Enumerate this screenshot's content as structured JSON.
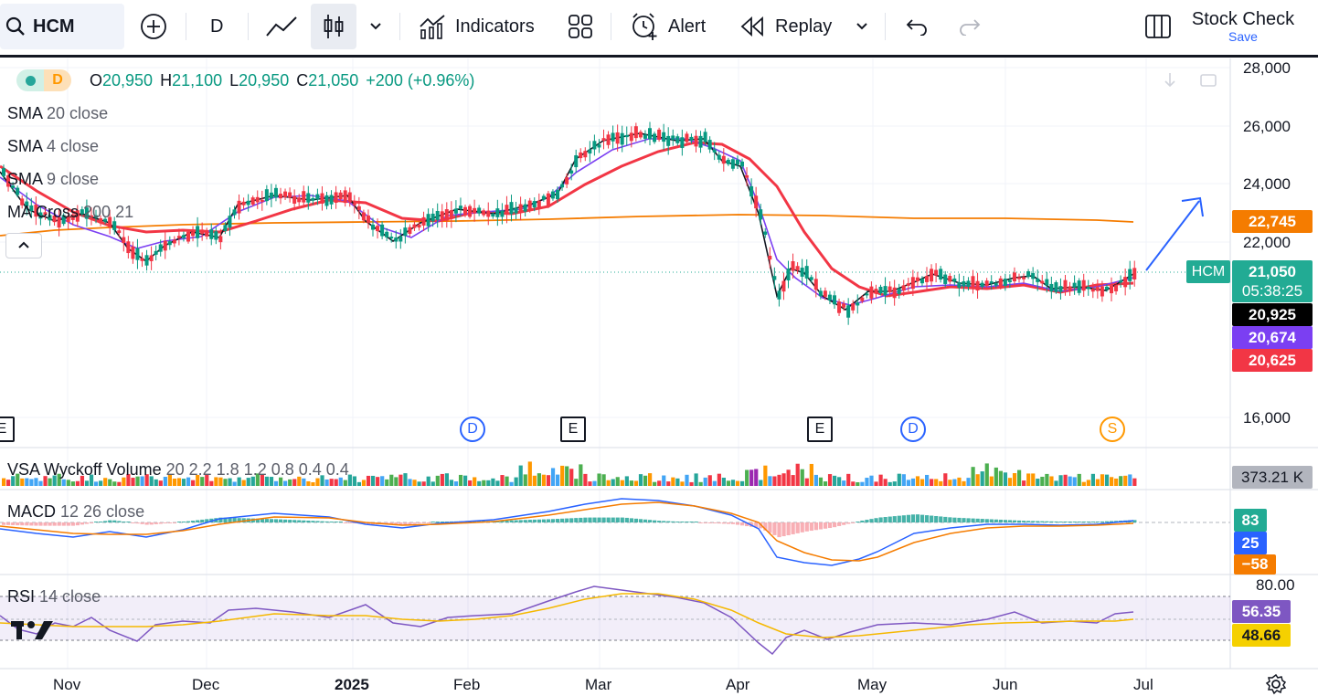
{
  "toolbar": {
    "symbol": "HCM",
    "interval": "D",
    "indicators_label": "Indicators",
    "alert_label": "Alert",
    "replay_label": "Replay",
    "stock_check_label": "Stock Check",
    "save_label": "Save"
  },
  "legend": {
    "interval_badge": "D",
    "open_key": "O",
    "open": "20,950",
    "high_key": "H",
    "high": "21,100",
    "low_key": "L",
    "low": "20,950",
    "close_key": "C",
    "close": "21,050",
    "change": "+200 (+0.96%)",
    "indicators": [
      {
        "name": "SMA",
        "params": "20 close"
      },
      {
        "name": "SMA",
        "params": "4 close"
      },
      {
        "name": "SMA",
        "params": "9 close"
      },
      {
        "name": "MA Cross",
        "params": "200 21"
      }
    ]
  },
  "panes": {
    "volume": {
      "name": "VSA Wyckoff Volume",
      "params": "20 2.2 1.8 1.2 0.8 0.4 0.4",
      "value": "373.21 K"
    },
    "macd": {
      "name": "MACD",
      "params": "12 26 close",
      "values": [
        "83",
        "25",
        "−58"
      ]
    },
    "rsi": {
      "name": "RSI",
      "params": "14 close",
      "level": "80.00",
      "values": [
        "56.35",
        "48.66"
      ]
    }
  },
  "price_axis": [
    "28,000",
    "26,000",
    "24,000",
    "22,000",
    "16,000"
  ],
  "price_tags": [
    {
      "label": "22,745",
      "color": "#f57c00"
    },
    {
      "label": "20,925",
      "color": "#000000"
    },
    {
      "label": "20,674",
      "color": "#7b3ff2"
    },
    {
      "label": "20,625",
      "color": "#f23645"
    }
  ],
  "last_price": {
    "symbol": "HCM",
    "price": "21,050",
    "countdown": "05:38:25"
  },
  "time_axis": [
    "Nov",
    "Dec",
    "2025",
    "Feb",
    "Mar",
    "Apr",
    "May",
    "Jun",
    "Jul"
  ],
  "events": [
    {
      "type": "E",
      "kind": "earnings"
    },
    {
      "type": "D",
      "kind": "dividend"
    },
    {
      "type": "E",
      "kind": "earnings"
    },
    {
      "type": "E",
      "kind": "earnings"
    },
    {
      "type": "D",
      "kind": "dividend"
    },
    {
      "type": "S",
      "kind": "split"
    }
  ],
  "colors": {
    "up": "#089981",
    "down": "#f23645",
    "sma20": "#f23645",
    "sma4": "#131722",
    "sma9": "#7b3ff2",
    "ma200": "#f57c00",
    "accent": "#2962ff"
  }
}
